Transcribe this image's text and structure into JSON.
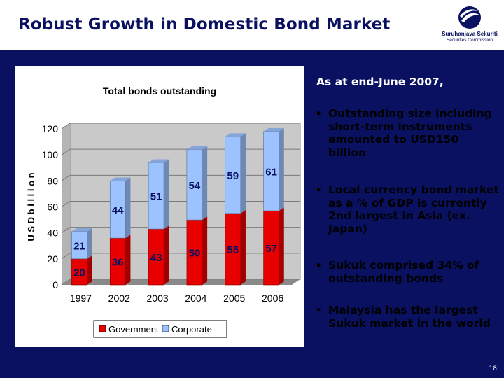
{
  "slide": {
    "title": "Robust Growth in Domestic Bond Market",
    "page_number": "18"
  },
  "logo": {
    "name": "Suruhanjaya Sekuriti",
    "subtitle": "Securities Commission"
  },
  "text_panel": {
    "intro": "As at end-June 2007,",
    "bullets": [
      "Outstanding size including short-term instruments amounted to USD150 billion",
      "Local currency bond market as a % of GDP is currently 2nd largest in Asia (ex. Japan)",
      "Sukuk comprised 34% of outstanding bonds",
      "Malaysia has the largest Sukuk market in the world"
    ],
    "bullet_marker": "▪"
  },
  "chart_data": {
    "type": "bar",
    "stacked": true,
    "three_d": true,
    "title": "Total bonds outstanding",
    "ylabel": "U S D  b i l l i o n",
    "categories": [
      "1997",
      "2002",
      "2003",
      "2004",
      "2005",
      "2006"
    ],
    "series": [
      {
        "name": "Government",
        "values": [
          20,
          36,
          43,
          50,
          55,
          57
        ],
        "color": "#e80000"
      },
      {
        "name": "Corporate",
        "values": [
          21,
          44,
          51,
          54,
          59,
          61
        ],
        "color": "#9cc2ff"
      }
    ],
    "ylim": [
      0,
      120
    ],
    "yticks": [
      "0",
      "20",
      "40",
      "60",
      "80",
      "100",
      "120"
    ],
    "grid": true,
    "legend_position": "bottom"
  },
  "colors": {
    "background": "#0a1160",
    "header": "#ffffff",
    "government": "#e80000",
    "corporate": "#9cc2ff",
    "data_label": "#0a1160"
  }
}
